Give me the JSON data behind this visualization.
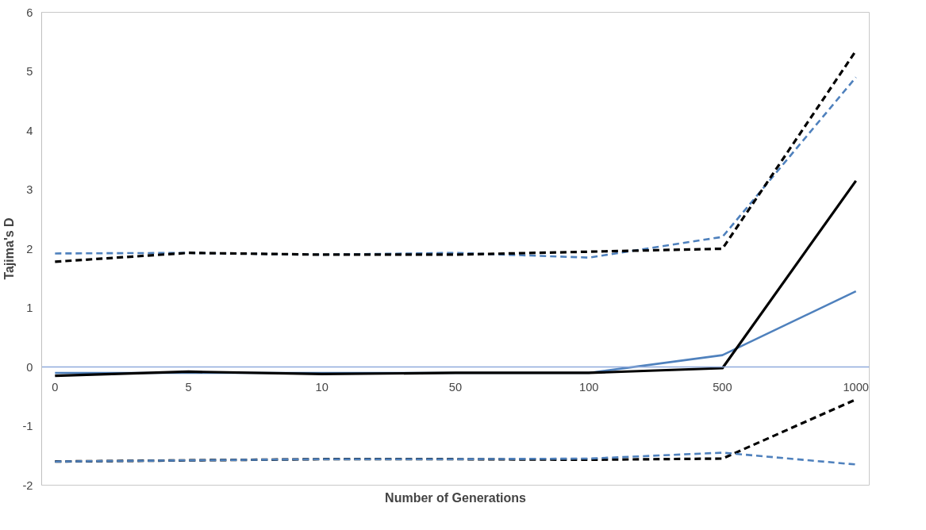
{
  "chart_data": {
    "type": "line",
    "xlabel": "Number of Generations",
    "ylabel": "Tajima's D",
    "categories": [
      "0",
      "5",
      "10",
      "50",
      "100",
      "500",
      "1000"
    ],
    "ylim": [
      -2,
      6
    ],
    "yticks": [
      -2,
      -1,
      0,
      1,
      2,
      3,
      4,
      5,
      6
    ],
    "grid": false,
    "marker": "none",
    "series": [
      {
        "color": "#4f81bd",
        "line_style": "dashed",
        "values": [
          1.92,
          1.93,
          1.9,
          1.93,
          1.85,
          2.2,
          4.9
        ]
      },
      {
        "color": "#000000",
        "line_style": "dashed",
        "values": [
          1.78,
          1.93,
          1.9,
          1.9,
          1.95,
          2.0,
          5.35
        ]
      },
      {
        "color": "#4f81bd",
        "line_style": "solid",
        "values": [
          -0.1,
          -0.1,
          -0.1,
          -0.1,
          -0.1,
          0.2,
          1.28
        ]
      },
      {
        "color": "#000000",
        "line_style": "solid",
        "values": [
          -0.15,
          -0.08,
          -0.12,
          -0.1,
          -0.1,
          -0.02,
          3.15
        ]
      },
      {
        "color": "#000000",
        "line_style": "dashed",
        "values": [
          -1.6,
          -1.58,
          -1.56,
          -1.56,
          -1.57,
          -1.55,
          -0.55
        ]
      },
      {
        "color": "#4f81bd",
        "line_style": "dashed",
        "values": [
          -1.6,
          -1.58,
          -1.56,
          -1.56,
          -1.55,
          -1.45,
          -1.65
        ]
      }
    ]
  }
}
